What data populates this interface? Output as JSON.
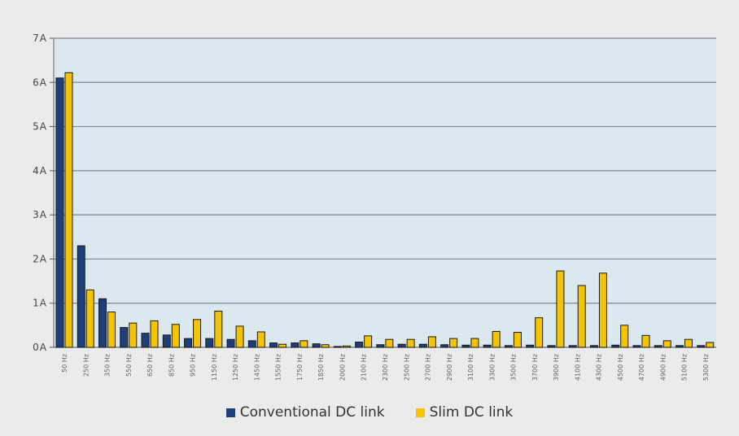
{
  "chart_data": {
    "type": "bar",
    "title": "",
    "xlabel": "",
    "ylabel": "",
    "ylim": [
      0,
      7
    ],
    "yticks": [
      "0A",
      "1A",
      "2A",
      "3A",
      "4A",
      "5A",
      "6A",
      "7A"
    ],
    "grid": true,
    "legend_position": "bottom",
    "categories": [
      "50 Hz",
      "250 Hz",
      "350 Hz",
      "550 Hz",
      "650 Hz",
      "850 Hz",
      "950 Hz",
      "1150 Hz",
      "1250 Hz",
      "1450 Hz",
      "1550 Hz",
      "1750 Hz",
      "1850 Hz",
      "2000 Hz",
      "2100 Hz",
      "2300 Hz",
      "2500 Hz",
      "2700 Hz",
      "2900 Hz",
      "3100 Hz",
      "3300 Hz",
      "3500 Hz",
      "3700 Hz",
      "3900 Hz",
      "4100 Hz",
      "4300 Hz",
      "4500 Hz",
      "4700 Hz",
      "4900 Hz",
      "5100 Hz",
      "5300 Hz"
    ],
    "series": [
      {
        "name": "Conventional DC link",
        "color": "#1f3f7a",
        "values": [
          6.1,
          2.3,
          1.1,
          0.45,
          0.32,
          0.28,
          0.2,
          0.2,
          0.18,
          0.15,
          0.1,
          0.1,
          0.08,
          0.02,
          0.12,
          0.06,
          0.07,
          0.07,
          0.06,
          0.05,
          0.05,
          0.04,
          0.05,
          0.04,
          0.04,
          0.04,
          0.05,
          0.04,
          0.04,
          0.04,
          0.04
        ]
      },
      {
        "name": "Slim DC link",
        "color": "#f5c400",
        "values": [
          6.22,
          1.3,
          0.8,
          0.55,
          0.6,
          0.52,
          0.63,
          0.82,
          0.48,
          0.35,
          0.07,
          0.15,
          0.06,
          0.03,
          0.26,
          0.18,
          0.18,
          0.24,
          0.2,
          0.2,
          0.36,
          0.34,
          0.67,
          1.73,
          1.4,
          1.68,
          0.5,
          0.27,
          0.15,
          0.18,
          0.11
        ]
      }
    ]
  },
  "colors": {
    "plot_background": "#dbe8f0",
    "page_background": "#ebebeb",
    "gridline": "#7f8590"
  }
}
